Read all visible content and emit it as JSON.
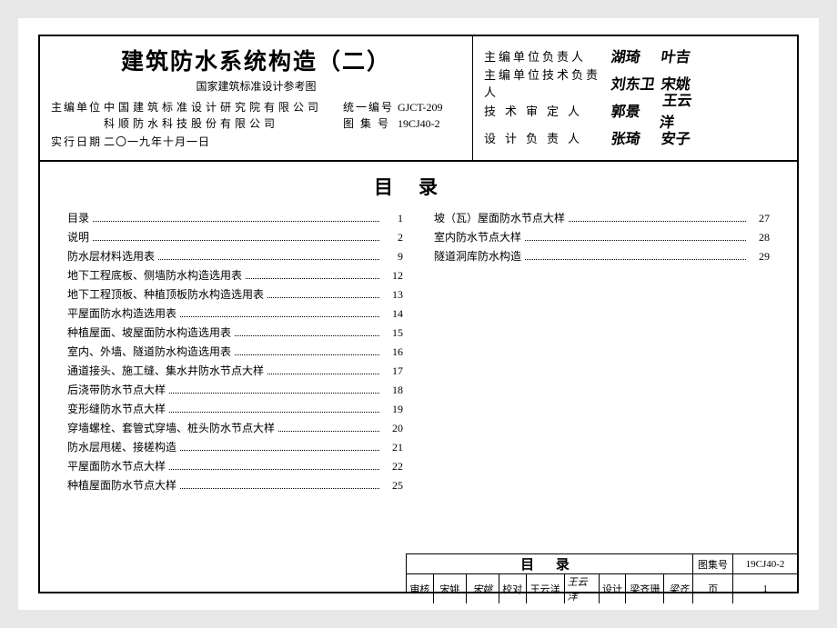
{
  "header": {
    "title": "建筑防水系统构造（二）",
    "subtitle": "国家建筑标准设计参考图",
    "sponsor_label": "主编单位",
    "sponsor1": "中国建筑标准设计研究院有限公司",
    "sponsor2": "科顺防水科技股份有限公司",
    "date_label": "实行日期",
    "date_value": "二〇一九年十月一日",
    "code_label": "统一编号",
    "code_value": "GJCT-209",
    "set_label": "图 集 号",
    "set_value": "19CJ40-2"
  },
  "signatures": [
    {
      "label": "主编单位负责人",
      "spacing": "normal",
      "s1": "湖琦",
      "s2": "叶吉"
    },
    {
      "label": "主编单位技术负责人",
      "spacing": "normal",
      "s1": "刘东卫",
      "s2": "宋姚"
    },
    {
      "label": "技术审定人",
      "spacing": "wide",
      "s1": "郭景",
      "s2": "王云洋"
    },
    {
      "label": "设计负责人",
      "spacing": "wide",
      "s1": "张琦",
      "s2": "安子"
    }
  ],
  "toc_heading": "目录",
  "toc_left": [
    {
      "t": "目录",
      "p": "1"
    },
    {
      "t": "说明",
      "p": "2"
    },
    {
      "t": "防水层材料选用表",
      "p": "9"
    },
    {
      "t": "地下工程底板、侧墙防水构造选用表",
      "p": "12"
    },
    {
      "t": "地下工程顶板、种植顶板防水构造选用表",
      "p": "13"
    },
    {
      "t": "平屋面防水构造选用表",
      "p": "14"
    },
    {
      "t": "种植屋面、坡屋面防水构造选用表",
      "p": "15"
    },
    {
      "t": "室内、外墙、隧道防水构造选用表",
      "p": "16"
    },
    {
      "t": "通道接头、施工缝、集水井防水节点大样",
      "p": "17"
    },
    {
      "t": "后浇带防水节点大样",
      "p": "18"
    },
    {
      "t": "变形缝防水节点大样",
      "p": "19"
    },
    {
      "t": "穿墙螺栓、套管式穿墙、桩头防水节点大样",
      "p": "20"
    },
    {
      "t": "防水层甩槎、接槎构造",
      "p": "21"
    },
    {
      "t": "平屋面防水节点大样",
      "p": "22"
    },
    {
      "t": "种植屋面防水节点大样",
      "p": "25"
    }
  ],
  "toc_right": [
    {
      "t": "坡（瓦）屋面防水节点大样",
      "p": "27"
    },
    {
      "t": "室内防水节点大样",
      "p": "28"
    },
    {
      "t": "隧道洞库防水构造",
      "p": "29"
    }
  ],
  "footer": {
    "big_title": "目  录",
    "set_label": "图集号",
    "set_value": "19CJ40-2",
    "review_label": "审核",
    "review_name": "宋姚",
    "review_sig": "宋姚",
    "check_label": "校对",
    "check_name": "王云洋",
    "check_sig": "王云洋",
    "design_label": "设计",
    "design_name": "梁齐珊",
    "design_sig": "梁齐",
    "page_label": "页",
    "page_value": "1"
  }
}
